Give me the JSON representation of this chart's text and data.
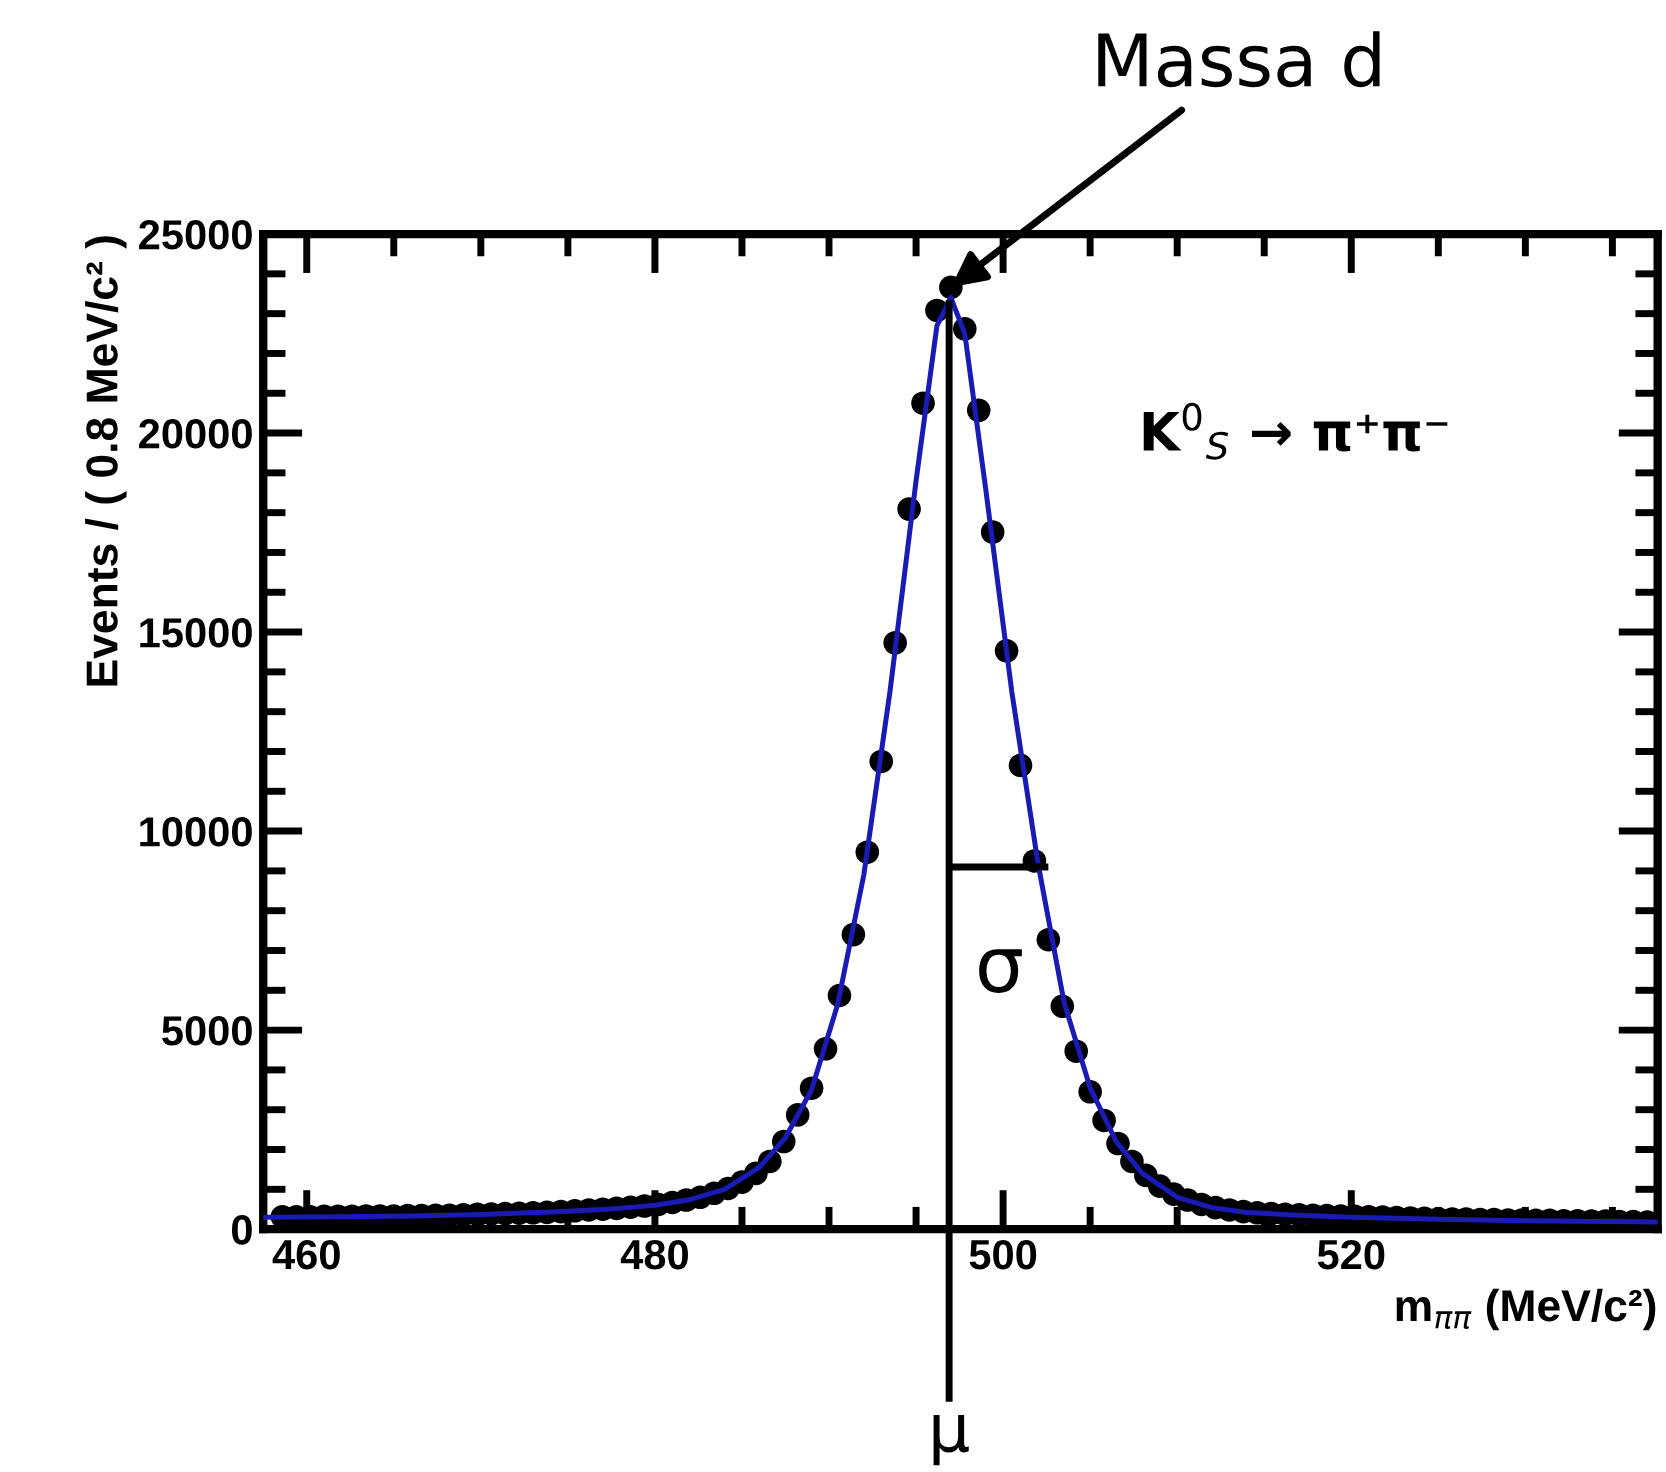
{
  "chart_data": {
    "type": "scatter",
    "xlabel": "m$_{ππ}$ (MeV/c²)",
    "ylabel": "Events / ( 0.8 MeV/c² )",
    "xlim": [
      457.5,
      537.6
    ],
    "ylim": [
      0,
      25000
    ],
    "xticks": [
      460,
      480,
      500,
      520
    ],
    "yticks": [
      0,
      5000,
      10000,
      15000,
      20000,
      25000
    ],
    "grid": false,
    "legend": false,
    "marker": "circle",
    "series": [
      {
        "color": "#000000",
        "x": [
          458.6,
          459.4,
          460.2,
          461.0,
          461.8,
          462.6,
          463.4,
          464.2,
          465.0,
          465.8,
          466.6,
          467.4,
          468.2,
          469.0,
          469.8,
          470.6,
          471.4,
          472.2,
          473.0,
          473.8,
          474.6,
          475.4,
          476.2,
          477.0,
          477.8,
          478.6,
          479.4,
          480.2,
          481.0,
          481.8,
          482.6,
          483.4,
          484.2,
          485.0,
          485.8,
          486.6,
          487.4,
          488.2,
          489.0,
          489.8,
          490.6,
          491.4,
          492.2,
          493.0,
          493.8,
          494.6,
          495.4,
          496.2,
          497.0,
          497.8,
          498.6,
          499.4,
          500.2,
          501.0,
          501.8,
          502.6,
          503.4,
          504.2,
          505.0,
          505.8,
          506.6,
          507.4,
          508.2,
          509.0,
          509.8,
          510.6,
          511.4,
          512.2,
          513.0,
          513.8,
          514.6,
          515.4,
          516.2,
          517.0,
          517.8,
          518.6,
          519.4,
          520.2,
          521.0,
          521.8,
          522.6,
          523.4,
          524.2,
          525.0,
          525.8,
          526.6,
          527.4,
          528.2,
          529.0,
          529.8,
          530.6,
          531.4,
          532.2,
          533.0,
          533.8,
          534.6,
          535.4,
          536.2,
          537.0
        ],
        "values": [
          310,
          310,
          310,
          320,
          320,
          320,
          330,
          330,
          330,
          340,
          340,
          350,
          350,
          360,
          370,
          380,
          390,
          400,
          410,
          420,
          440,
          460,
          480,
          500,
          520,
          550,
          580,
          620,
          670,
          730,
          800,
          900,
          1020,
          1180,
          1400,
          1700,
          2200,
          2870,
          3540,
          4530,
          5870,
          7400,
          9470,
          11750,
          14730,
          18090,
          20750,
          23080,
          23660,
          22620,
          20570,
          17510,
          14530,
          11650,
          9250,
          7270,
          5600,
          4470,
          3450,
          2730,
          2150,
          1700,
          1350,
          1080,
          880,
          730,
          620,
          540,
          480,
          440,
          410,
          390,
          370,
          360,
          350,
          340,
          330,
          320,
          310,
          300,
          290,
          280,
          270,
          260,
          250,
          250,
          240,
          240,
          230,
          230,
          220,
          220,
          210,
          210,
          200,
          200,
          190,
          190,
          180
        ]
      },
      {
        "type": "line",
        "color": "#1a1ab4",
        "marker": "none",
        "line_style": "solid",
        "x": [
          457.5,
          462,
          466,
          470,
          474,
          477,
          480,
          482,
          484,
          486,
          487.5,
          489,
          490.5,
          492,
          493.5,
          495,
          496.2,
          497.0,
          497.8,
          499,
          500.5,
          502,
          503.5,
          505,
          506.5,
          508,
          510,
          512,
          514,
          517,
          520,
          525,
          530,
          537.6
        ],
        "values": [
          300,
          310,
          330,
          370,
          430,
          490,
          600,
          740,
          1000,
          1550,
          2300,
          3500,
          5650,
          8900,
          13500,
          18800,
          22700,
          23400,
          22500,
          18600,
          13500,
          9200,
          5700,
          3550,
          2200,
          1400,
          800,
          540,
          420,
          350,
          300,
          250,
          210,
          180
        ]
      },
      {
        "type": "line",
        "color": "#000000",
        "marker": "none",
        "line_style": "solid",
        "x": [
          497.2,
          502.4
        ],
        "values": [
          9100,
          9100
        ]
      }
    ],
    "ref_lines": [
      {
        "axis": "x",
        "value": 496.9,
        "label": "μ",
        "color": "#000000"
      }
    ],
    "annotations": [
      {
        "text": "Massa d",
        "x": 497.0,
        "y": 23660
      },
      "σ",
      "K$^{0}$$_{S}$ → π⁺π⁻"
    ]
  }
}
